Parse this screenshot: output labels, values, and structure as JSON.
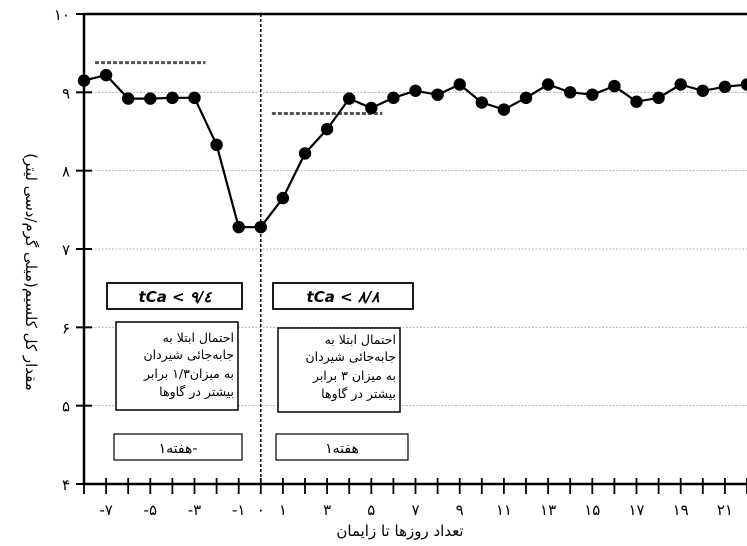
{
  "chart_data": {
    "type": "line",
    "title": "",
    "xlabel": "تعداد روزها تا زایمان",
    "ylabel": "مقدار کل کلسیم(میلی گرم/دسی لیتر)",
    "ylim": [
      4,
      10
    ],
    "xlim": [
      -8,
      22
    ],
    "grid": true,
    "y_ticks": [
      4,
      5,
      6,
      7,
      8,
      9,
      10
    ],
    "y_tick_labels": [
      "۴",
      "۵",
      "۶",
      "۷",
      "۸",
      "۹",
      "۱۰"
    ],
    "x_ticks": [
      -7,
      -5,
      -3,
      -1,
      0,
      1,
      3,
      5,
      7,
      9,
      11,
      13,
      15,
      17,
      19,
      21
    ],
    "x_tick_labels": [
      "-۷",
      "-۵",
      "-۳",
      "-۱",
      "۰",
      "۱",
      "۳",
      "۵",
      "۷",
      "۹",
      "۱۱",
      "۱۳",
      "۱۵",
      "۱۷",
      "۱۹",
      "۲۱"
    ],
    "series": [
      {
        "x": [
          -8,
          -7,
          -6,
          -5,
          -4,
          -3,
          -2,
          -1,
          0,
          1,
          2,
          3,
          4,
          5,
          6,
          7,
          8,
          9,
          10,
          11,
          12,
          13,
          14,
          15,
          16,
          17,
          18,
          19,
          20,
          21,
          22
        ],
        "values": [
          9.15,
          9.22,
          8.92,
          8.92,
          8.93,
          8.93,
          8.33,
          7.28,
          7.28,
          7.65,
          8.22,
          8.53,
          8.92,
          8.8,
          8.93,
          9.02,
          8.97,
          9.1,
          8.87,
          8.78,
          8.93,
          9.1,
          9.0,
          8.97,
          9.08,
          8.88,
          8.93,
          9.1,
          9.02,
          9.07,
          9.1
        ]
      }
    ],
    "threshold_lines": [
      {
        "x_range": [
          -7.5,
          -2.5
        ],
        "y": 9.38
      },
      {
        "x_range": [
          0.5,
          5.5
        ],
        "y": 8.73
      }
    ],
    "annotations": {
      "divider_x": 0,
      "pre": {
        "tca_label": "tCa < ۹/٤",
        "risk_text": [
          "احتمال ابتلا به",
          "جابه‌جائی شیردان",
          "به میزان۱/۳ برابر",
          "بیشتر در گاوها"
        ],
        "week_label": "هفته۱-"
      },
      "post": {
        "tca_label": "tCa < ۸/۸",
        "risk_text": [
          "احتمال ابتلا به",
          "جابه‌جائی شیردان",
          "به میزان ۳ برابر",
          "بیشتر در گاوها"
        ],
        "week_label": "هفته۱"
      }
    }
  }
}
